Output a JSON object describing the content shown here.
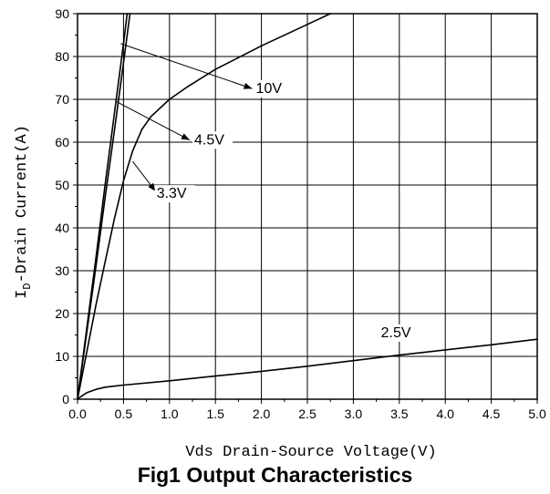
{
  "chart_data": {
    "type": "line",
    "title": "Fig1 Output Characteristics",
    "xlabel": "Vds Drain-Source Voltage(V)",
    "ylabel_main": "I",
    "ylabel_sub": "D",
    "ylabel_rest": "-Drain Current(A)",
    "xlim": [
      0,
      5
    ],
    "ylim": [
      0,
      90
    ],
    "grid": true,
    "x_ticks": [
      "0.0",
      "0.5",
      "1.0",
      "1.5",
      "2.0",
      "2.5",
      "3.0",
      "3.5",
      "4.0",
      "4.5",
      "5.0"
    ],
    "y_ticks": [
      "0",
      "10",
      "20",
      "30",
      "40",
      "50",
      "60",
      "70",
      "80",
      "90"
    ],
    "series": [
      {
        "name": "10V",
        "x": [
          0,
          0.1,
          0.2,
          0.3,
          0.4,
          0.5,
          0.54
        ],
        "y": [
          0,
          16.5,
          33,
          50,
          66.5,
          83,
          90
        ]
      },
      {
        "name": "4.5V",
        "x": [
          0,
          0.1,
          0.2,
          0.3,
          0.4,
          0.5,
          0.57
        ],
        "y": [
          0,
          15.5,
          31,
          47,
          62.5,
          78.5,
          90
        ]
      },
      {
        "name": "3.3V",
        "x": [
          0,
          0.1,
          0.2,
          0.3,
          0.4,
          0.5,
          0.6,
          0.7,
          0.8,
          1.0,
          1.2,
          1.5,
          2.0,
          2.5,
          2.75
        ],
        "y": [
          0,
          11,
          22,
          32,
          42,
          51,
          58,
          63,
          66,
          70,
          73,
          77,
          82.5,
          87.5,
          90
        ]
      },
      {
        "name": "2.5V",
        "x": [
          0,
          0.05,
          0.1,
          0.2,
          0.3,
          0.5,
          1.0,
          1.5,
          2.0,
          2.5,
          3.0,
          3.5,
          4.0,
          4.5,
          5.0
        ],
        "y": [
          0,
          0.8,
          1.5,
          2.3,
          2.8,
          3.3,
          4.3,
          5.4,
          6.5,
          7.7,
          9.0,
          10.3,
          11.5,
          12.7,
          14
        ]
      }
    ],
    "annotations": [
      {
        "text": "10V",
        "from": [
          0.47,
          83
        ],
        "to": [
          1.9,
          72.5
        ],
        "label": [
          1.94,
          71.5
        ]
      },
      {
        "text": "4.5V",
        "from": [
          0.42,
          69.5
        ],
        "to": [
          1.22,
          60.5
        ],
        "label": [
          1.27,
          59.5
        ]
      },
      {
        "text": "3.3V",
        "from": [
          0.6,
          55.5
        ],
        "to": [
          0.85,
          48.5
        ],
        "label": [
          0.86,
          47
        ]
      },
      {
        "text": "2.5V",
        "from": null,
        "to": null,
        "label": [
          3.3,
          14.5
        ]
      }
    ]
  }
}
